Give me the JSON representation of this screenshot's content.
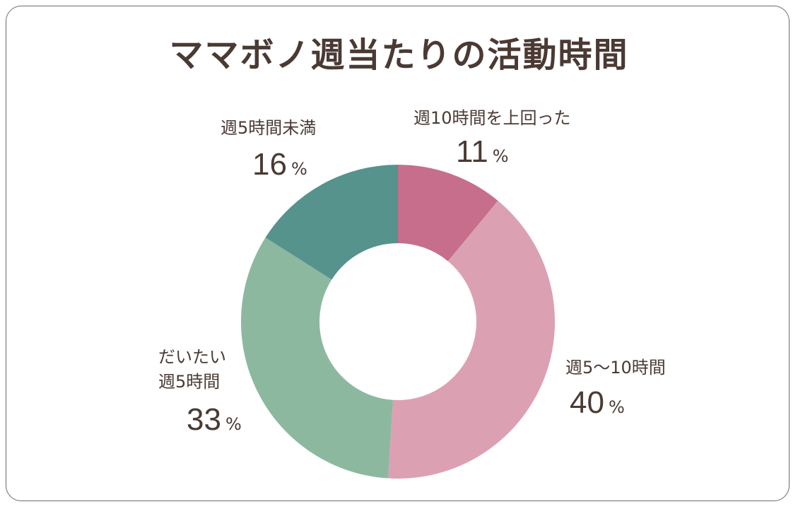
{
  "chart_data": {
    "type": "pie",
    "title": "ママボノ週当たりの活動時間",
    "unit": "%",
    "slices": [
      {
        "label": "週10時間を上回った",
        "value": 11,
        "color": "#c66e8b"
      },
      {
        "label": "週5〜10時間",
        "value": 40,
        "color": "#dca0b3"
      },
      {
        "label": "だいたい週5時間",
        "value": 33,
        "color": "#8db8a0"
      },
      {
        "label": "週5時間未満",
        "value": 16,
        "color": "#55938c"
      }
    ],
    "label_lines": {
      "slice0": [
        "週10時間を上回った"
      ],
      "slice1": [
        "週5〜10時間"
      ],
      "slice2": [
        "だいたい",
        "週5時間"
      ],
      "slice3": [
        "週5時間未満"
      ]
    },
    "percent_text": [
      "11",
      "40",
      "33",
      "16"
    ]
  }
}
